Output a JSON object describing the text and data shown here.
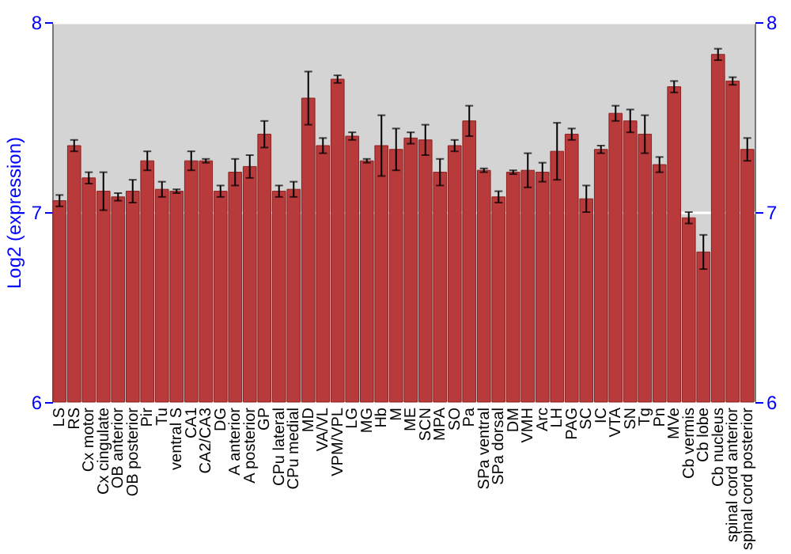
{
  "chart_data": {
    "type": "bar",
    "ylabel": "Log2 (expression)",
    "categories": [
      "LS",
      "RS",
      "Cx motor",
      "Cx cingulate",
      "OB anterior",
      "OB posterior",
      "Pir",
      "Tu",
      "ventral S",
      "CA1",
      "CA2/CA3",
      "DG",
      "A anterior",
      "A posterior",
      "GP",
      "CPu lateral",
      "CPu medial",
      "MD",
      "VA/VL",
      "VPM/VPL",
      "LG",
      "MG",
      "Hb",
      "M",
      "ME",
      "SCN",
      "MPA",
      "SO",
      "Pa",
      "SPa ventral",
      "SPa dorsal",
      "DM",
      "VMH",
      "Arc",
      "LH",
      "PAG",
      "SC",
      "IC",
      "VTA",
      "SN",
      "Tg",
      "Pn",
      "MVe",
      "Cb vermis",
      "Cb lobe",
      "Cb nucleus",
      "spinal cord anterior",
      "spinal cord posterior"
    ],
    "values": [
      7.06,
      7.35,
      7.18,
      7.11,
      7.08,
      7.11,
      7.27,
      7.12,
      7.11,
      7.27,
      7.27,
      7.11,
      7.21,
      7.24,
      7.41,
      7.11,
      7.12,
      7.6,
      7.35,
      7.7,
      7.4,
      7.27,
      7.35,
      7.33,
      7.39,
      7.38,
      7.21,
      7.35,
      7.48,
      7.22,
      7.08,
      7.21,
      7.22,
      7.21,
      7.32,
      7.41,
      7.07,
      7.33,
      7.52,
      7.48,
      7.41,
      7.25,
      7.66,
      6.97,
      6.79,
      7.83,
      7.69,
      7.33
    ],
    "errors": [
      0.03,
      0.03,
      0.03,
      0.1,
      0.02,
      0.06,
      0.05,
      0.04,
      0.01,
      0.05,
      0.01,
      0.03,
      0.07,
      0.06,
      0.07,
      0.03,
      0.04,
      0.14,
      0.04,
      0.02,
      0.02,
      0.01,
      0.16,
      0.11,
      0.03,
      0.08,
      0.07,
      0.03,
      0.08,
      0.01,
      0.03,
      0.01,
      0.09,
      0.05,
      0.15,
      0.03,
      0.07,
      0.02,
      0.04,
      0.06,
      0.1,
      0.04,
      0.03,
      0.03,
      0.09,
      0.03,
      0.02,
      0.06
    ],
    "color": "#b83a3a",
    "ylim": [
      6,
      8
    ],
    "yticks": [
      6,
      7,
      8
    ],
    "y2lim": [
      6,
      8
    ],
    "y2ticks": [
      6,
      7,
      8
    ],
    "grid": "y"
  }
}
